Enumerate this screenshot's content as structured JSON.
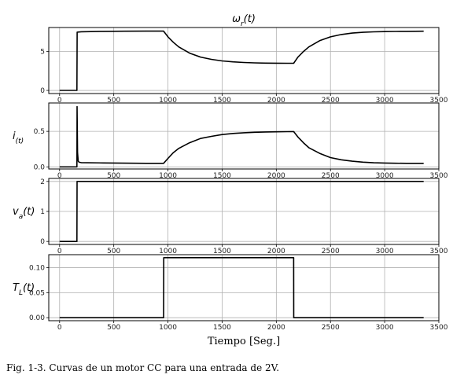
{
  "caption": "Fig. 1-3. Curvas de un motor CC para una entrada de 2V.",
  "chart_data": [
    {
      "type": "line",
      "title": "ω_r(t)",
      "ylabel": "",
      "xlim": [
        -100,
        3500
      ],
      "ylim": [
        -0.4,
        8.1
      ],
      "xticks": [
        0,
        500,
        1000,
        1500,
        2000,
        2500,
        3000,
        3500
      ],
      "xtick_labels": [
        "0",
        "500",
        "1000",
        "1500",
        "2000",
        "2500",
        "3000",
        "3500"
      ],
      "yticks": [
        0,
        5
      ],
      "ytick_labels": [
        "0",
        "5"
      ],
      "grid": true,
      "series": [
        {
          "x": [
            0,
            160,
            162,
            200,
            400,
            600,
            800,
            960,
            1000,
            1050,
            1100,
            1200,
            1300,
            1400,
            1500,
            1600,
            1700,
            1800,
            1900,
            2000,
            2100,
            2160,
            2200,
            2250,
            2300,
            2400,
            2500,
            2600,
            2700,
            2800,
            2900,
            3000,
            3100,
            3200,
            3360
          ],
          "y": [
            0,
            0,
            7.5,
            7.55,
            7.6,
            7.62,
            7.63,
            7.63,
            6.9,
            6.2,
            5.6,
            4.8,
            4.3,
            4.0,
            3.8,
            3.68,
            3.6,
            3.55,
            3.52,
            3.51,
            3.5,
            3.5,
            4.3,
            5.0,
            5.6,
            6.4,
            6.9,
            7.2,
            7.38,
            7.48,
            7.54,
            7.57,
            7.59,
            7.6,
            7.62
          ]
        }
      ]
    },
    {
      "type": "line",
      "title": "",
      "ylabel": "i_(t)",
      "xlim": [
        -100,
        3500
      ],
      "ylim": [
        -0.03,
        0.9
      ],
      "xticks": [
        0,
        500,
        1000,
        1500,
        2000,
        2500,
        3000,
        3500
      ],
      "xtick_labels": [
        "0",
        "500",
        "1000",
        "1500",
        "2000",
        "2500",
        "3000",
        "3500"
      ],
      "yticks": [
        0,
        0.5
      ],
      "ytick_labels": [
        "0.0",
        "0.5"
      ],
      "grid": true,
      "series": [
        {
          "x": [
            0,
            160,
            161,
            166,
            172,
            180,
            200,
            400,
            600,
            800,
            960,
            1000,
            1050,
            1100,
            1200,
            1300,
            1400,
            1500,
            1600,
            1700,
            1800,
            1900,
            2000,
            2100,
            2160,
            2200,
            2250,
            2300,
            2400,
            2500,
            2600,
            2700,
            2800,
            2900,
            3000,
            3100,
            3200,
            3360
          ],
          "y": [
            0,
            0,
            0.85,
            0.2,
            0.08,
            0.065,
            0.06,
            0.055,
            0.052,
            0.05,
            0.05,
            0.12,
            0.2,
            0.26,
            0.34,
            0.4,
            0.43,
            0.455,
            0.47,
            0.48,
            0.487,
            0.491,
            0.494,
            0.496,
            0.497,
            0.42,
            0.34,
            0.27,
            0.19,
            0.13,
            0.1,
            0.08,
            0.066,
            0.058,
            0.054,
            0.051,
            0.05,
            0.05
          ]
        }
      ]
    },
    {
      "type": "line",
      "title": "",
      "ylabel": "v_a(t)",
      "xlim": [
        -100,
        3500
      ],
      "ylim": [
        -0.1,
        2.1
      ],
      "xticks": [
        0,
        500,
        1000,
        1500,
        2000,
        2500,
        3000,
        3500
      ],
      "xtick_labels": [
        "0",
        "500",
        "1000",
        "1500",
        "2000",
        "2500",
        "3000",
        "3500"
      ],
      "yticks": [
        0,
        1,
        2
      ],
      "ytick_labels": [
        "0",
        "1",
        "2"
      ],
      "grid": true,
      "series": [
        {
          "x": [
            0,
            160,
            161,
            3360
          ],
          "y": [
            0,
            0,
            2,
            2
          ]
        }
      ]
    },
    {
      "type": "line",
      "title": "",
      "ylabel": "T_L(t)",
      "xlabel": "Tiempo [Seg.]",
      "xlim": [
        -100,
        3500
      ],
      "ylim": [
        -0.006,
        0.126
      ],
      "xticks": [
        0,
        500,
        1000,
        1500,
        2000,
        2500,
        3000,
        3500
      ],
      "xtick_labels": [
        "0",
        "500",
        "1000",
        "1500",
        "2000",
        "2500",
        "3000",
        "3500"
      ],
      "yticks": [
        0,
        0.05,
        0.1
      ],
      "ytick_labels": [
        "0.00",
        "0.05",
        "0.10"
      ],
      "grid": true,
      "series": [
        {
          "x": [
            0,
            960,
            961,
            2160,
            2161,
            3360
          ],
          "y": [
            0,
            0,
            0.12,
            0.12,
            0,
            0
          ]
        }
      ]
    }
  ]
}
